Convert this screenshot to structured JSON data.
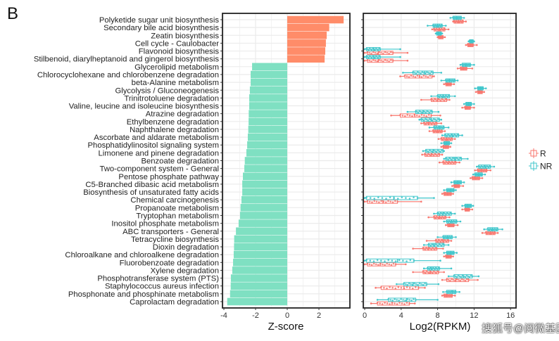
{
  "panel_label": "B",
  "watermark": "搜狐号@阅微基因",
  "colors": {
    "up_bar": "#FF8C69",
    "down_bar": "#7FE0C2",
    "R": "#F8766D",
    "NR": "#3FC6CB"
  },
  "chart_data": [
    {
      "type": "bar",
      "orientation": "horizontal",
      "xlabel": "Z-score",
      "xlim": [
        -4.1,
        3.9
      ],
      "xticks": [
        "-4",
        "-2",
        "0",
        "2"
      ],
      "grid": true,
      "categories": [
        "Polyketide sugar unit biosynthesis",
        "Secondary bile acid biosynthesis",
        "Zeatin biosynthesis",
        "Cell cycle - Caulobacter",
        "Flavonoid biosynthesis",
        "Stilbenoid, diarylheptanoid and gingerol biosynthesis",
        "Glycerolipid metabolism",
        "Chlorocyclohexane and chlorobenzene degradation",
        "beta-Alanine metabolism",
        "Glycolysis / Gluconeogenesis",
        "Trinitrotoluene degradation",
        "Valine, leucine and isoleucine biosynthesis",
        "Atrazine degradation",
        "Ethylbenzene degradation",
        "Naphthalene degradation",
        "Ascorbate and aldarate metabolism",
        "Phosphatidylinositol signaling system",
        "Limonene and pinene degradation",
        "Benzoate degradation",
        "Two-component system - General",
        "Pentose phosphate pathway",
        "C5-Branched dibasic acid metabolism",
        "Biosynthesis of unsaturated fatty acids",
        "Chemical carcinogenesis",
        "Propanoate metabolism",
        "Tryptophan metabolism",
        "Inositol phosphate metabolism",
        "ABC transporters - General",
        "Tetracycline biosynthesis",
        "Dioxin degradation",
        "Chloroalkane and chloroalkene degradation",
        "Fluorobenzoate degradation",
        "Xylene degradation",
        "Phosphotransferase system (PTS)",
        "Staphylococcus aureus infection",
        "Phosphonate and phosphinate metabolism",
        "Caprolactam degradation"
      ],
      "values": [
        3.56,
        2.65,
        2.49,
        2.44,
        2.4,
        2.36,
        -2.22,
        -2.31,
        -2.31,
        -2.36,
        -2.4,
        -2.4,
        -2.43,
        -2.44,
        -2.46,
        -2.49,
        -2.53,
        -2.58,
        -2.68,
        -2.71,
        -2.8,
        -2.84,
        -2.84,
        -2.89,
        -2.95,
        -2.98,
        -3.07,
        -3.24,
        -3.35,
        -3.36,
        -3.38,
        -3.42,
        -3.47,
        -3.56,
        -3.57,
        -3.61,
        -3.79
      ]
    },
    {
      "type": "boxplot",
      "orientation": "horizontal",
      "xlabel": "Log2(RPKM)",
      "xlim": [
        0,
        16
      ],
      "xticks": [
        "0",
        "4",
        "8",
        "12",
        "16"
      ],
      "grid": true,
      "legend_position": "right",
      "stat_order": [
        "min",
        "q1",
        "median",
        "q3",
        "max"
      ],
      "series": [
        {
          "name": "R",
          "values": [
            [
              9.7,
              9.8,
              10.3,
              10.8,
              11.1
            ],
            [
              7.4,
              7.6,
              8.2,
              8.8,
              9.2
            ],
            [
              8.0,
              8.1,
              8.3,
              8.6,
              8.8
            ],
            [
              11.1,
              11.3,
              11.6,
              11.9,
              12.3
            ],
            [
              0,
              0.3,
              1.5,
              3.1,
              4.7
            ],
            [
              0,
              0.3,
              1.5,
              3.1,
              4.7
            ],
            [
              10.2,
              10.5,
              10.8,
              11.2,
              11.8
            ],
            [
              3.9,
              4.4,
              6.0,
              7.4,
              7.6
            ],
            [
              8.7,
              8.9,
              9.1,
              9.5,
              9.8
            ],
            [
              12.2,
              12.4,
              12.6,
              12.9,
              13.1
            ],
            [
              6.2,
              7.3,
              8.0,
              9.0,
              9.3
            ],
            [
              10.7,
              11.0,
              11.2,
              11.6,
              12.0
            ],
            [
              2.9,
              3.9,
              5.5,
              7.3,
              8.3
            ],
            [
              6.2,
              6.5,
              7.0,
              7.9,
              8.4
            ],
            [
              7.1,
              7.5,
              8.0,
              8.5,
              8.8
            ],
            [
              8.1,
              8.4,
              9.0,
              9.6,
              9.9
            ],
            [
              8.4,
              8.6,
              8.9,
              9.2,
              9.4
            ],
            [
              6.3,
              6.6,
              7.3,
              8.2,
              8.5
            ],
            [
              8.2,
              8.6,
              9.2,
              10.0,
              10.4
            ],
            [
              12.1,
              12.4,
              12.8,
              13.4,
              13.8
            ],
            [
              11.6,
              11.8,
              12.1,
              12.6,
              12.9
            ],
            [
              9.6,
              9.8,
              10.0,
              10.4,
              10.8
            ],
            [
              8.5,
              8.7,
              9.1,
              9.5,
              9.7
            ],
            [
              0,
              0.3,
              2.0,
              3.6,
              6.2
            ],
            [
              10.7,
              11.0,
              11.2,
              11.5,
              11.8
            ],
            [
              7.0,
              7.6,
              8.2,
              8.9,
              9.3
            ],
            [
              8.9,
              9.1,
              9.3,
              9.8,
              10.2
            ],
            [
              12.9,
              13.3,
              13.8,
              14.3,
              14.6
            ],
            [
              6.8,
              7.8,
              8.6,
              9.2,
              9.5
            ],
            [
              5.3,
              6.4,
              7.0,
              7.9,
              8.6
            ],
            [
              8.7,
              8.9,
              9.1,
              9.5,
              9.7
            ],
            [
              0,
              0.3,
              1.7,
              3.4,
              4.5
            ],
            [
              5.3,
              6.4,
              7.2,
              8.1,
              8.7
            ],
            [
              8.5,
              9.0,
              10.0,
              11.4,
              12.4
            ],
            [
              1.2,
              1.8,
              4.3,
              5.9,
              6.6
            ],
            [
              8.5,
              8.7,
              9.0,
              9.6,
              9.9
            ],
            [
              0.7,
              1.4,
              3.0,
              4.9,
              5.5
            ]
          ]
        },
        {
          "name": "NR",
          "values": [
            [
              9.4,
              9.7,
              10.1,
              10.6,
              10.9
            ],
            [
              6.9,
              7.5,
              8.0,
              8.5,
              8.9
            ],
            [
              7.8,
              7.9,
              8.1,
              8.4,
              8.5
            ],
            [
              11.4,
              11.5,
              11.7,
              11.9,
              12.0
            ],
            [
              0,
              0.2,
              1.0,
              1.7,
              3.9
            ],
            [
              0,
              0.2,
              1.0,
              1.7,
              3.9
            ],
            [
              10.5,
              10.7,
              11.1,
              11.6,
              12.0
            ],
            [
              4.2,
              5.3,
              6.6,
              7.5,
              8.4
            ],
            [
              8.4,
              8.9,
              9.3,
              9.9,
              10.2
            ],
            [
              12.1,
              12.4,
              12.7,
              13.0,
              13.3
            ],
            [
              7.3,
              8.0,
              8.6,
              9.3,
              9.9
            ],
            [
              10.9,
              11.1,
              11.4,
              11.7,
              12.0
            ],
            [
              4.7,
              5.6,
              6.4,
              7.4,
              8.1
            ],
            [
              6.0,
              6.2,
              7.3,
              8.2,
              8.4
            ],
            [
              7.1,
              7.6,
              8.2,
              8.7,
              9.2
            ],
            [
              8.5,
              8.8,
              9.6,
              10.3,
              10.7
            ],
            [
              8.4,
              8.7,
              9.0,
              9.3,
              9.5
            ],
            [
              6.4,
              6.7,
              7.5,
              8.6,
              8.7
            ],
            [
              8.7,
              8.9,
              9.9,
              10.6,
              11.3
            ],
            [
              12.3,
              12.5,
              13.2,
              13.8,
              14.2
            ],
            [
              11.9,
              12.1,
              12.5,
              12.9,
              13.2
            ],
            [
              9.5,
              9.8,
              10.2,
              10.6,
              10.9
            ],
            [
              8.7,
              9.0,
              9.4,
              9.8,
              10.0
            ],
            [
              0,
              0.2,
              3.2,
              5.8,
              7.6
            ],
            [
              10.7,
              11.0,
              11.3,
              11.7,
              11.9
            ],
            [
              7.6,
              8.0,
              8.6,
              9.5,
              9.9
            ],
            [
              8.7,
              9.0,
              9.5,
              10.1,
              10.5
            ],
            [
              13.1,
              13.5,
              14.0,
              14.6,
              15.1
            ],
            [
              8.0,
              8.6,
              9.1,
              9.6,
              10.0
            ],
            [
              6.5,
              7.0,
              7.6,
              8.7,
              9.2
            ],
            [
              8.7,
              9.0,
              9.4,
              9.8,
              10.1
            ],
            [
              0,
              0.2,
              3.6,
              5.4,
              8.3
            ],
            [
              6.5,
              6.9,
              7.3,
              8.2,
              9.5
            ],
            [
              9.2,
              9.8,
              10.8,
              11.8,
              12.5
            ],
            [
              3.5,
              4.3,
              5.3,
              6.8,
              8.1
            ],
            [
              8.6,
              9.0,
              9.6,
              10.0,
              10.4
            ],
            [
              1.4,
              2.6,
              4.6,
              5.6,
              8.0
            ]
          ]
        }
      ]
    }
  ]
}
